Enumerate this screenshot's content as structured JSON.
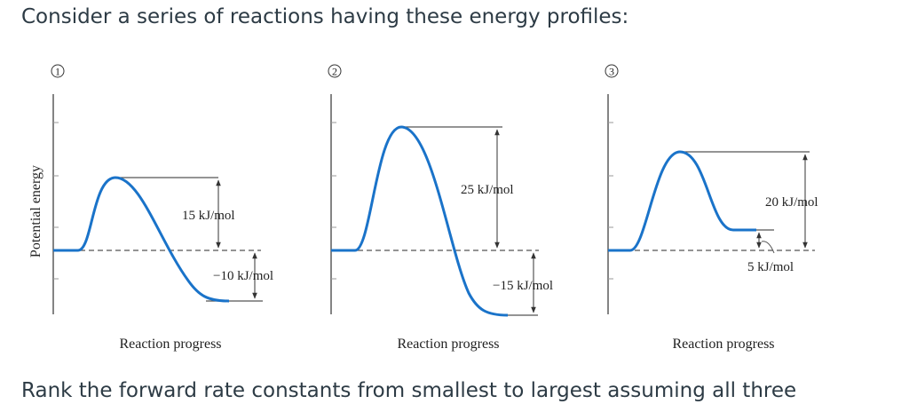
{
  "intro_text": "Consider a series of reactions having these energy profiles:",
  "question_text": "Rank the forward rate constants from smallest to largest assuming all three",
  "y_axis_label": "Potential energy",
  "x_axis_label": "Reaction progress",
  "profiles": [
    {
      "number": "1",
      "activation_label": "15 kJ/mol",
      "delta_label": "−10 kJ/mol"
    },
    {
      "number": "2",
      "activation_label": "25 kJ/mol",
      "delta_label": "−15 kJ/mol"
    },
    {
      "number": "3",
      "activation_label": "20 kJ/mol",
      "delta_label": "5 kJ/mol"
    }
  ],
  "colors": {
    "curve": "#1a73c9",
    "text": "#2d3b45",
    "axis": "#333333"
  }
}
